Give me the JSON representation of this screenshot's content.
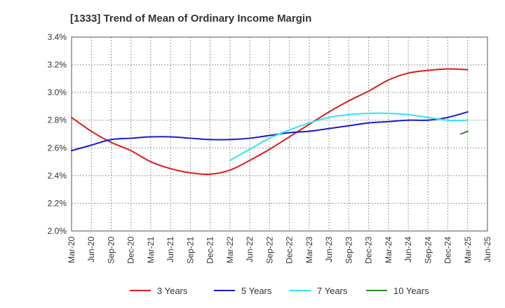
{
  "chart_data": {
    "type": "line",
    "title": "[1333]  Trend of Mean of Ordinary Income Margin",
    "xlabel": "",
    "ylabel": "",
    "x": [
      "Mar-20",
      "Jun-20",
      "Sep-20",
      "Dec-20",
      "Mar-21",
      "Jun-21",
      "Sep-21",
      "Dec-21",
      "Mar-22",
      "Jun-22",
      "Sep-22",
      "Dec-22",
      "Mar-23",
      "Jun-23",
      "Sep-23",
      "Dec-23",
      "Mar-24",
      "Jun-24",
      "Sep-24",
      "Dec-24",
      "Mar-25",
      "Jun-25"
    ],
    "ylim": [
      2.0,
      3.4
    ],
    "yticks": [
      "2.0%",
      "2.2%",
      "2.4%",
      "2.6%",
      "2.8%",
      "3.0%",
      "3.2%",
      "3.4%"
    ],
    "grid": true,
    "legend_position": "bottom",
    "series": [
      {
        "name": "3 Years",
        "color": "#dd1c1c",
        "values": [
          2.82,
          2.72,
          2.64,
          2.58,
          2.5,
          2.45,
          2.42,
          2.41,
          2.44,
          2.51,
          2.59,
          2.68,
          2.77,
          2.86,
          2.94,
          3.01,
          3.09,
          3.14,
          3.16,
          3.17,
          3.165,
          null
        ]
      },
      {
        "name": "5 Years",
        "color": "#1a1acc",
        "values": [
          2.58,
          2.62,
          2.66,
          2.67,
          2.68,
          2.68,
          2.67,
          2.66,
          2.66,
          2.67,
          2.69,
          2.71,
          2.72,
          2.74,
          2.76,
          2.78,
          2.79,
          2.8,
          2.8,
          2.82,
          2.86,
          null
        ]
      },
      {
        "name": "7 Years",
        "color": "#33e5f0",
        "values": [
          null,
          null,
          null,
          null,
          null,
          null,
          null,
          null,
          2.51,
          2.59,
          2.67,
          2.73,
          2.78,
          2.82,
          2.84,
          2.85,
          2.85,
          2.84,
          2.82,
          2.8,
          2.8,
          null
        ]
      },
      {
        "name": "10 Years",
        "color": "#2a8a2a",
        "values": [
          null,
          null,
          null,
          null,
          null,
          null,
          null,
          null,
          null,
          null,
          null,
          null,
          null,
          null,
          null,
          null,
          null,
          null,
          null,
          null,
          2.7,
          null
        ],
        "partial_end": {
          "from": 2.7,
          "to": 2.72
        }
      }
    ]
  }
}
